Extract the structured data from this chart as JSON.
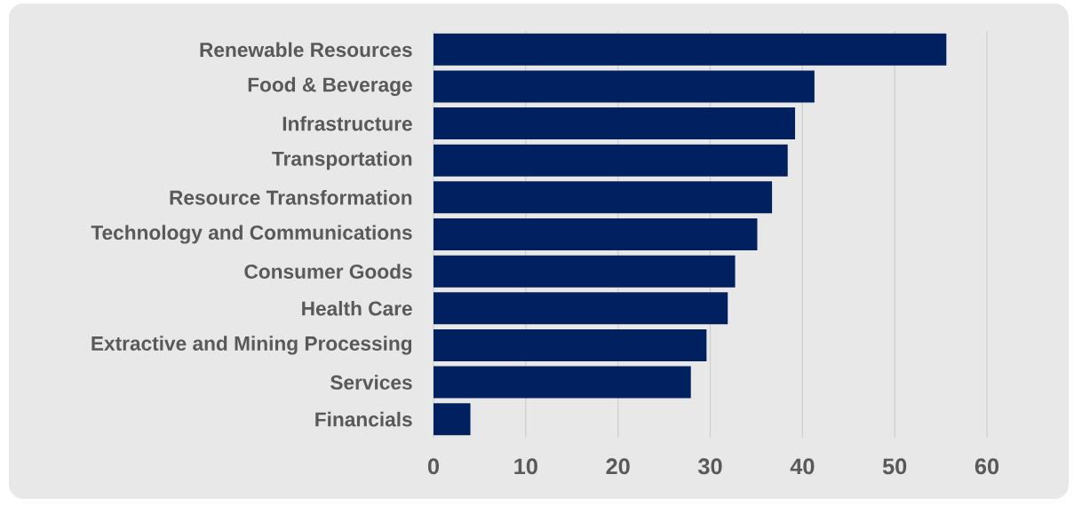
{
  "chart_data": {
    "type": "bar",
    "orientation": "horizontal",
    "categories": [
      "Renewable Resources",
      "Food & Beverage",
      "Infrastructure",
      "Transportation",
      "Resource Transformation",
      "Technology and Communications",
      "Consumer Goods",
      "Health Care",
      "Extractive and Mining Processing",
      "Services",
      "Financials"
    ],
    "values": [
      55.6,
      41.3,
      39.2,
      38.4,
      36.7,
      35.1,
      32.7,
      31.9,
      29.6,
      27.9,
      4.0
    ],
    "color": "#002060",
    "xlim": [
      0,
      60
    ],
    "xticks": [
      0,
      10,
      20,
      30,
      40,
      50,
      60
    ],
    "grid": "x"
  }
}
